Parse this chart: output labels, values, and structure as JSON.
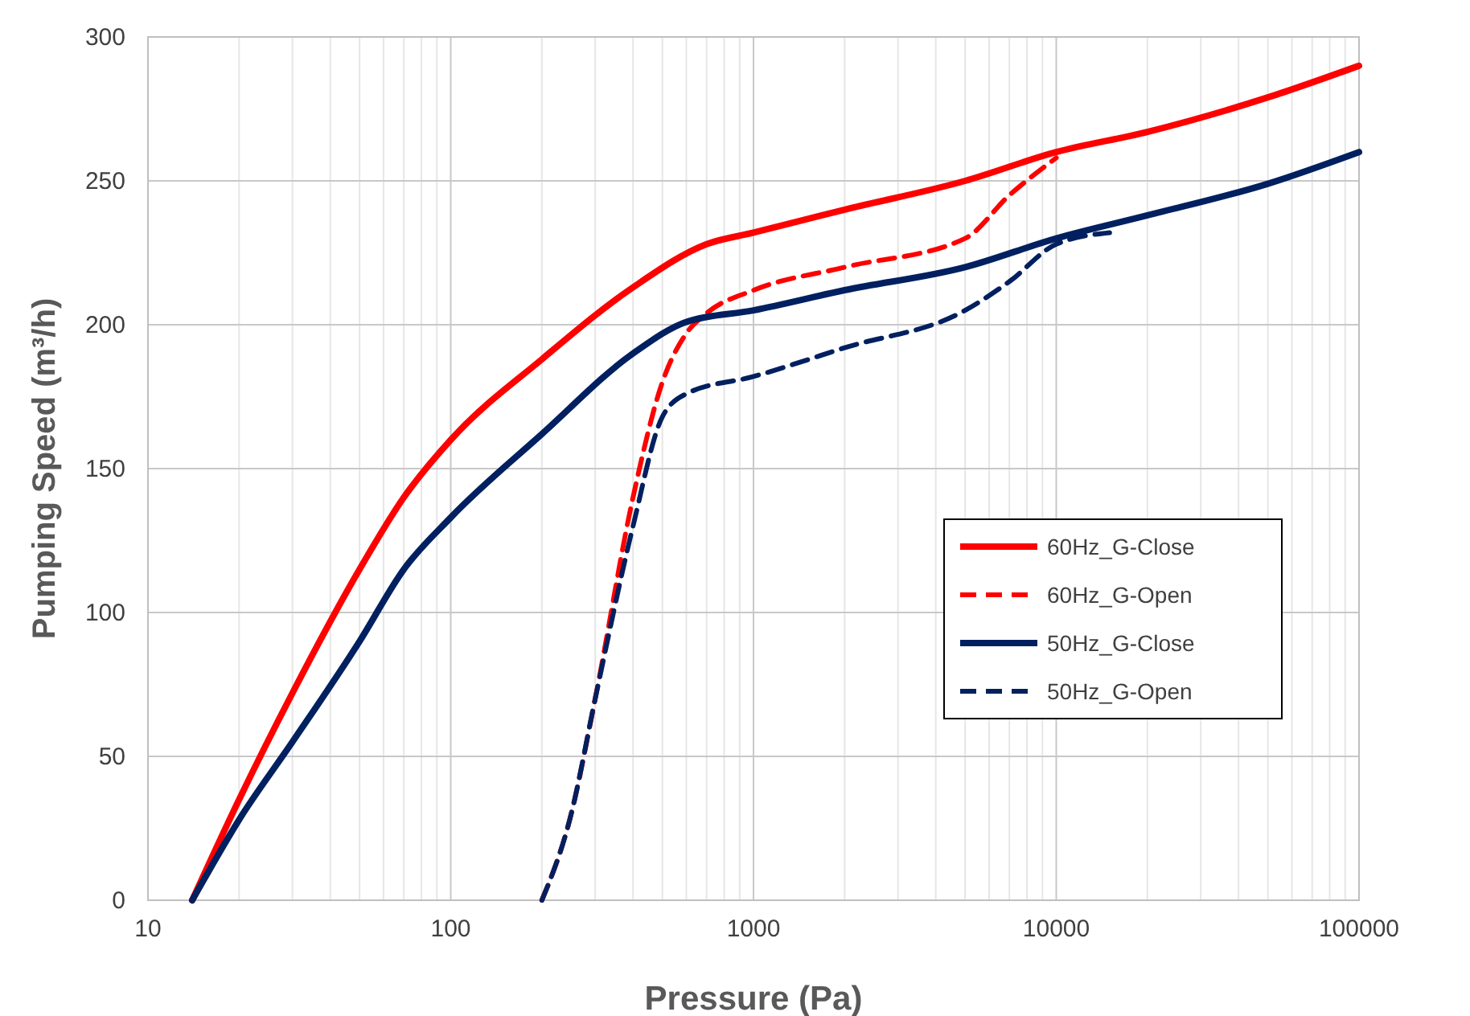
{
  "chart_data": {
    "type": "line",
    "xlabel": "Pressure (Pa)",
    "ylabel": "Pumping Speed (m³/h)",
    "log": "x",
    "grid": true,
    "legend": "right",
    "xlim": [
      10,
      100000
    ],
    "xticks": [
      10,
      100,
      1000,
      10000,
      100000
    ],
    "ylim": [
      0,
      300
    ],
    "yticks": [
      0,
      50,
      100,
      150,
      200,
      250,
      300
    ],
    "series": [
      {
        "name": "60Hz_G-Close",
        "color": "#ff0000",
        "line_style": "solid",
        "x": [
          14,
          20,
          30,
          50,
          70,
          100,
          200,
          400,
          700,
          1000,
          2000,
          5000,
          10000,
          20000,
          50000,
          100000
        ],
        "values": [
          0,
          35,
          72,
          115,
          140,
          160,
          188,
          213,
          228,
          232,
          240,
          250,
          260,
          267,
          279,
          290
        ]
      },
      {
        "name": "60Hz_G-Open",
        "color": "#ff0000",
        "line_style": "dashed",
        "x": [
          200,
          250,
          300,
          400,
          500,
          600,
          700,
          1000,
          2000,
          5000,
          7000,
          10000
        ],
        "values": [
          0,
          30,
          70,
          140,
          180,
          197,
          204,
          212,
          220,
          230,
          245,
          258
        ]
      },
      {
        "name": "50Hz_G-Close",
        "color": "#002060",
        "line_style": "solid",
        "x": [
          14,
          20,
          30,
          50,
          70,
          100,
          200,
          400,
          600,
          1000,
          2000,
          5000,
          10000,
          20000,
          50000,
          100000
        ],
        "values": [
          0,
          28,
          55,
          90,
          115,
          133,
          162,
          190,
          201,
          205,
          212,
          220,
          230,
          238,
          249,
          260
        ]
      },
      {
        "name": "50Hz_G-Open",
        "color": "#002060",
        "line_style": "dashed",
        "x": [
          200,
          250,
          300,
          400,
          500,
          600,
          1000,
          2000,
          5000,
          7000,
          10000,
          15000
        ],
        "values": [
          0,
          30,
          70,
          130,
          168,
          176,
          182,
          192,
          205,
          215,
          228,
          232
        ]
      }
    ]
  }
}
